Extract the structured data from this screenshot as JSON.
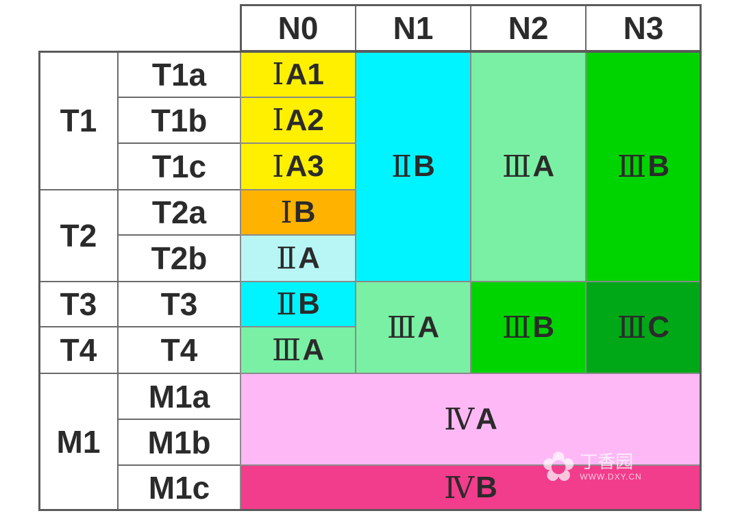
{
  "columns": [
    "N0",
    "N1",
    "N2",
    "N3"
  ],
  "t_groups": [
    "T1",
    "T2",
    "T3",
    "T4",
    "M1"
  ],
  "t_subs": [
    "T1a",
    "T1b",
    "T1c",
    "T2a",
    "T2b",
    "T3",
    "T4",
    "M1a",
    "M1b",
    "M1c"
  ],
  "stages": {
    "n0_t1a": {
      "roman": "Ⅰ",
      "label": "A1"
    },
    "n0_t1b": {
      "roman": "Ⅰ",
      "label": "A2"
    },
    "n0_t1c": {
      "roman": "Ⅰ",
      "label": "A3"
    },
    "n0_t2a": {
      "roman": "Ⅰ",
      "label": "B"
    },
    "n0_t2b": {
      "roman": "Ⅱ",
      "label": "A"
    },
    "n0_t3": {
      "roman": "Ⅱ",
      "label": "B"
    },
    "n0_t4": {
      "roman": "Ⅲ",
      "label": "A"
    },
    "n1_t1t2": {
      "roman": "Ⅱ",
      "label": "B"
    },
    "n2_t1t2": {
      "roman": "Ⅲ",
      "label": "A"
    },
    "n3_t1t2": {
      "roman": "Ⅲ",
      "label": "B"
    },
    "n1_t3t4": {
      "roman": "Ⅲ",
      "label": "A"
    },
    "n2_t3t4": {
      "roman": "Ⅲ",
      "label": "B"
    },
    "n3_t3t4": {
      "roman": "Ⅲ",
      "label": "C"
    },
    "m1ab": {
      "roman": "Ⅳ",
      "label": "A"
    },
    "m1c": {
      "roman": "Ⅳ",
      "label": "B"
    }
  },
  "colors": {
    "yellow": "#fff000",
    "orange": "#ffb300",
    "light_cyan": "#b8f6f6",
    "cyan": "#00f4ff",
    "light_green": "#7af0a4",
    "green": "#00d400",
    "dark_green": "#00a818",
    "pink": "#ffb8f6",
    "magenta": "#f23c8c"
  },
  "watermark": {
    "name": "丁香园",
    "url": "WWW.DXY.CN"
  }
}
